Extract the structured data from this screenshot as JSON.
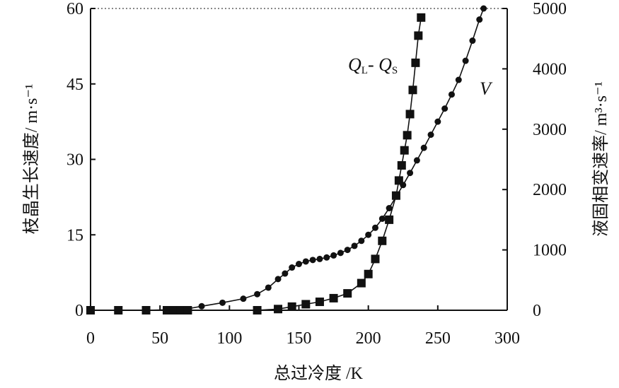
{
  "chart_data": {
    "type": "line",
    "xlabel": "总过冷度 /K",
    "ylabel_left": "枝晶生长速度/ m·s⁻¹",
    "ylabel_right": "液固相变速率/ m³·s⁻¹",
    "xlim": [
      0,
      300
    ],
    "ylim_left": [
      0,
      60
    ],
    "ylim_right": [
      0,
      5000
    ],
    "xticks": [
      "0",
      "50",
      "100",
      "150",
      "200",
      "250",
      "300"
    ],
    "yticks_left": [
      "0",
      "15",
      "30",
      "45",
      "60"
    ],
    "yticks_right": [
      "0",
      "1000",
      "2000",
      "3000",
      "4000",
      "5000"
    ],
    "grid": false,
    "series": [
      {
        "name": "V",
        "axis": "left",
        "marker": "circle",
        "color": "#111111",
        "x": [
          0,
          20,
          40,
          55,
          68,
          80,
          95,
          110,
          120,
          128,
          135,
          140,
          145,
          150,
          155,
          160,
          165,
          170,
          175,
          180,
          185,
          190,
          195,
          200,
          205,
          210,
          215,
          220,
          225,
          230,
          235,
          240,
          245,
          250,
          255,
          260,
          265,
          270,
          275,
          280,
          283
        ],
        "y": [
          0,
          0,
          0,
          0.1,
          0.2,
          0.8,
          1.5,
          2.3,
          3.2,
          4.5,
          6.2,
          7.3,
          8.5,
          9.2,
          9.7,
          10.0,
          10.2,
          10.5,
          10.9,
          11.4,
          12.0,
          12.8,
          13.8,
          15.0,
          16.4,
          18.2,
          20.3,
          22.6,
          24.9,
          27.3,
          29.8,
          32.3,
          34.9,
          37.5,
          40.1,
          42.9,
          45.8,
          49.6,
          53.6,
          57.8,
          60
        ]
      },
      {
        "name": "QL - QS",
        "axis": "right",
        "marker": "square",
        "color": "#111111",
        "x": [
          0,
          20,
          40,
          55,
          60,
          65,
          70,
          120,
          135,
          145,
          155,
          165,
          175,
          185,
          195,
          200,
          205,
          210,
          215,
          220,
          222,
          224,
          226,
          228,
          230,
          232,
          234,
          236,
          238
        ],
        "y": [
          0,
          0,
          0,
          0,
          0,
          0,
          0,
          0,
          20,
          60,
          100,
          140,
          200,
          280,
          450,
          600,
          850,
          1150,
          1500,
          1900,
          2150,
          2400,
          2650,
          2900,
          3250,
          3650,
          4100,
          4550,
          4850
        ]
      }
    ],
    "annotations": [
      {
        "text_main_1": "Q",
        "sub_1": "L",
        "dash": "- ",
        "text_main_2": "Q",
        "sub_2": "S"
      },
      {
        "text": "V"
      }
    ]
  }
}
